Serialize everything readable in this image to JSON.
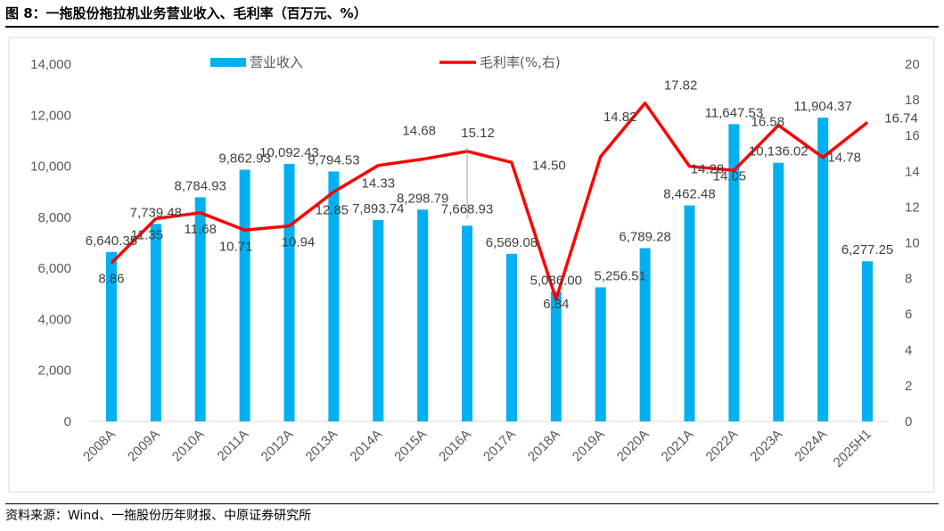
{
  "title": {
    "prefix": "图 8：",
    "text": "一拖股份拖拉机业务营业收入、毛利率（百万元、%）"
  },
  "source": "资料来源：Wind、一拖股份历年财报、中原证券研究所",
  "chart_data": {
    "type": "bar",
    "categories": [
      "2008A",
      "2009A",
      "2010A",
      "2011A",
      "2012A",
      "2013A",
      "2014A",
      "2015A",
      "2016A",
      "2017A",
      "2018A",
      "2019A",
      "2020A",
      "2021A",
      "2022A",
      "2023A",
      "2024A",
      "2025H1"
    ],
    "series": [
      {
        "name": "营业收入",
        "type": "bar",
        "axis": "left",
        "color": "#00B0F0",
        "values": [
          6640.35,
          7739.48,
          8784.93,
          9862.93,
          10092.43,
          9794.53,
          7893.74,
          8298.79,
          7668.93,
          6569.08,
          5086.0,
          5256.51,
          6789.28,
          8462.48,
          11647.53,
          10136.02,
          11904.37,
          6277.25
        ],
        "labels": [
          "6,640.35",
          "7,739.48",
          "8,784.93",
          "9,862.93",
          "10,092.43",
          "9,794.53",
          "7,893.74",
          "8,298.79",
          "7,668.93",
          "6,569.08",
          "5,086.00",
          "5,256.51",
          "6,789.28",
          "8,462.48",
          "11,647.53",
          "10,136.02",
          "11,904.37",
          "6,277.25"
        ]
      },
      {
        "name": "毛利率(%,右)",
        "type": "line",
        "axis": "right",
        "color": "#FF0000",
        "values": [
          8.86,
          11.35,
          11.68,
          10.71,
          10.94,
          12.85,
          14.33,
          14.68,
          15.12,
          14.5,
          6.84,
          14.82,
          17.82,
          14.28,
          14.05,
          16.58,
          14.78,
          16.74
        ],
        "labels": [
          "8.86",
          "11.35",
          "11.68",
          "10.71",
          "10.94",
          "12.85",
          "14.33",
          "14.68",
          "15.12",
          "14.50",
          "6.84",
          "14.82",
          "17.82",
          "14.28",
          "14.05",
          "16.58",
          "14.78",
          "16.74"
        ]
      }
    ],
    "y_left": {
      "min": 0,
      "max": 14000,
      "step": 2000,
      "tick_labels": [
        "0",
        "2,000",
        "4,000",
        "6,000",
        "8,000",
        "10,000",
        "12,000",
        "14,000"
      ]
    },
    "y_right": {
      "min": 0,
      "max": 20,
      "step": 2,
      "tick_labels": [
        "0",
        "2",
        "4",
        "6",
        "8",
        "10",
        "12",
        "14",
        "16",
        "18",
        "20"
      ]
    },
    "grid": false,
    "legend_position": "top"
  }
}
